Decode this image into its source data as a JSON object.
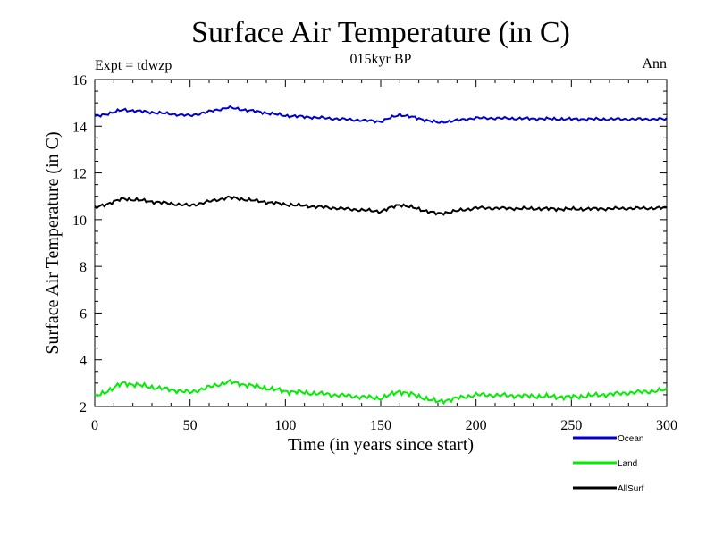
{
  "chart_data": {
    "type": "line",
    "title": "Surface Air Temperature (in C)",
    "subtitle": "015kyr BP",
    "left_label": "Expt = tdwzp",
    "right_label": "Ann",
    "xlabel": "Time (in years since start)",
    "ylabel": "Surface Air Temperature (in C)",
    "xlim": [
      0,
      300
    ],
    "ylim": [
      2,
      16
    ],
    "xticks": [
      0,
      50,
      100,
      150,
      200,
      250,
      300
    ],
    "yticks": [
      2,
      4,
      6,
      8,
      10,
      12,
      14,
      16
    ],
    "grid": false,
    "legend_position": "bottom-right",
    "series": [
      {
        "name": "Ocean",
        "color": "#0000cc",
        "base": 14.38,
        "amplitude": 0.12,
        "values_by_year": {
          "0": 14.4,
          "15": 14.7,
          "50": 14.45,
          "70": 14.8,
          "100": 14.45,
          "150": 14.2,
          "160": 14.5,
          "180": 14.15,
          "200": 14.35,
          "250": 14.3,
          "300": 14.3
        }
      },
      {
        "name": "Land",
        "color": "#00ee00",
        "base": 2.5,
        "amplitude": 0.2,
        "values_by_year": {
          "0": 2.4,
          "15": 3.0,
          "50": 2.6,
          "70": 3.05,
          "100": 2.65,
          "150": 2.35,
          "160": 2.65,
          "180": 2.2,
          "200": 2.5,
          "250": 2.4,
          "300": 2.7
        }
      },
      {
        "name": "AllSurf",
        "color": "#000000",
        "base": 10.55,
        "amplitude": 0.14,
        "values_by_year": {
          "0": 10.5,
          "15": 10.9,
          "50": 10.6,
          "70": 10.95,
          "100": 10.65,
          "150": 10.35,
          "160": 10.65,
          "180": 10.25,
          "200": 10.5,
          "250": 10.45,
          "300": 10.5
        }
      }
    ]
  }
}
